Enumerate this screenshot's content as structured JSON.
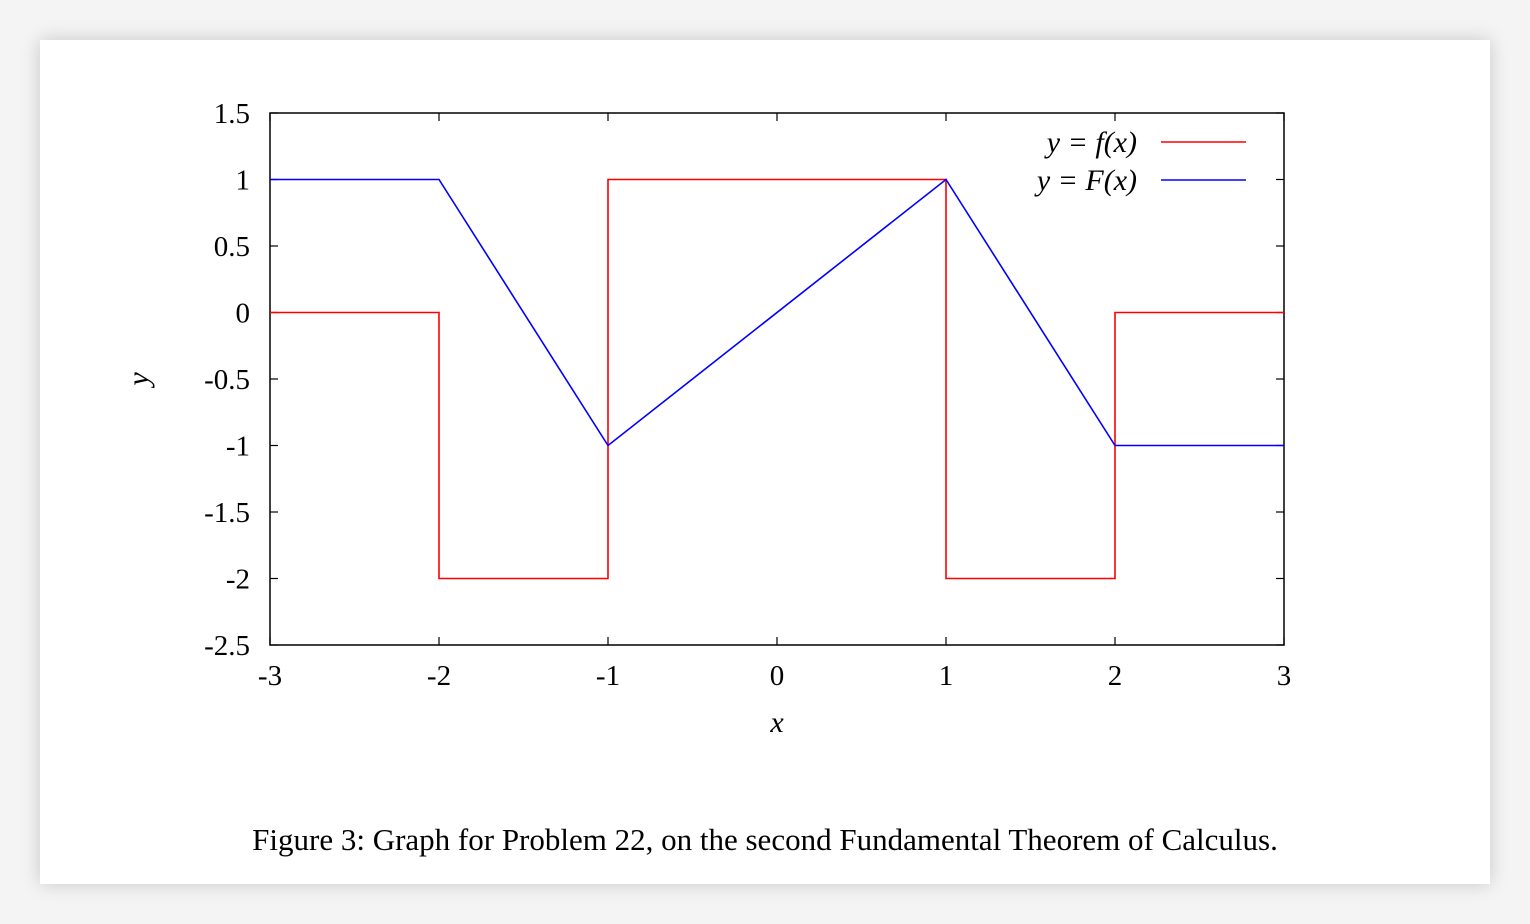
{
  "chart_data": {
    "type": "line",
    "title": "",
    "xlabel": "x",
    "ylabel": "y",
    "xlim": [
      -3,
      3
    ],
    "ylim": [
      -2.5,
      1.5
    ],
    "xticks": [
      -3,
      -2,
      -1,
      0,
      1,
      2,
      3
    ],
    "xtick_labels": [
      "-3",
      "-2",
      "-1",
      "0",
      "1",
      "2",
      "3"
    ],
    "yticks": [
      1.5,
      1,
      0.5,
      0,
      -0.5,
      -1,
      -1.5,
      -2,
      -2.5
    ],
    "ytick_labels": [
      "1.5",
      "1",
      "0.5",
      "0",
      "-0.5",
      "-1",
      "-1.5",
      "-2",
      "-2.5"
    ],
    "legend_position": "top-right",
    "series": [
      {
        "name": "y = f(x)",
        "legend_label": "y = f(x)",
        "color": "#ff0000",
        "x": [
          -3,
          -2,
          -2,
          -1,
          -1,
          1,
          1,
          2,
          2,
          3
        ],
        "y": [
          0,
          0,
          -2,
          -2,
          1,
          1,
          -2,
          -2,
          0,
          0
        ]
      },
      {
        "name": "y = F(x)",
        "legend_label": "y = F(x)",
        "color": "#0000ff",
        "x": [
          -3,
          -2,
          -1,
          1,
          2,
          3
        ],
        "y": [
          1,
          1,
          -1,
          1,
          -1,
          -1
        ]
      }
    ]
  },
  "caption": "Figure 3: Graph for Problem 22, on the second Fundamental Theorem of Calculus."
}
